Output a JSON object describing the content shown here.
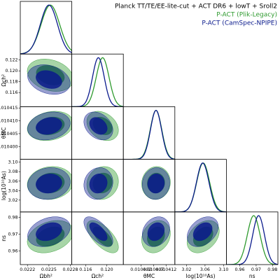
{
  "chart_data": {
    "type": "triangle",
    "title": "Planck TT/TE/EE-lite-cut + ACT DR6 + lowT + Sroll2",
    "params": [
      {
        "label": "Ωbh²",
        "lim": [
          0.0221,
          0.02282
        ],
        "xticks": [
          0.0222,
          0.0225,
          0.0228
        ]
      },
      {
        "label": "Ωch²",
        "lim": [
          0.1134,
          0.1231
        ],
        "xticks": [
          0.116,
          {
            "value": 0.12,
            "label": "0.120"
          }
        ],
        "yticks": [
          0.116,
          0.118,
          {
            "value": 0.12,
            "label": "0.120"
          },
          0.122
        ]
      },
      {
        "label": "θMC",
        "lim": [
          0.010395,
          0.0104155
        ],
        "xticks": [
          0.010402,
          0.010407,
          0.010412
        ],
        "yticks": [
          {
            "value": 0.0104,
            "label": "0.010400"
          },
          0.010405,
          {
            "value": 0.01041,
            "label": "0.010410"
          },
          0.010415
        ]
      },
      {
        "label": "log(10¹⁰As)",
        "lim": [
          2.995,
          3.106
        ],
        "xticks": [
          3.02,
          3.06,
          {
            "value": 3.1,
            "label": "3.10"
          }
        ],
        "yticks": [
          3.02,
          3.04,
          3.06,
          3.08,
          {
            "value": 3.1,
            "label": "3.10"
          }
        ]
      },
      {
        "label": "ns",
        "lim": [
          0.9518,
          0.9833
        ],
        "xticks": [
          0.96,
          0.97,
          0.98
        ],
        "yticks": [
          0.96,
          0.97,
          0.98
        ]
      }
    ],
    "series": [
      {
        "name": "P-ACT (Plik-Legacy)",
        "color": "#2e9a2e",
        "means": [
          0.02252,
          0.1192,
          0.010408,
          3.056,
          0.9685
        ],
        "sigmas": [
          0.00013,
          0.0012,
          2.3e-06,
          0.014,
          0.0039
        ],
        "corr": [
          -0.25,
          0.2,
          -0.3,
          0.1,
          0.1,
          0.05,
          0.3,
          -0.65,
          0.2,
          0.35
        ]
      },
      {
        "name": "P-ACT (CamSpec-NPIPE)",
        "color": "#0a1a8c",
        "means": [
          0.0225,
          0.1184,
          0.010408,
          3.055,
          0.9715
        ],
        "sigmas": [
          0.00012,
          0.0011,
          2.2e-06,
          0.0135,
          0.0036
        ],
        "corr": [
          -0.25,
          0.2,
          -0.3,
          0.1,
          0.1,
          0.05,
          0.3,
          -0.65,
          0.2,
          0.35
        ]
      }
    ]
  }
}
